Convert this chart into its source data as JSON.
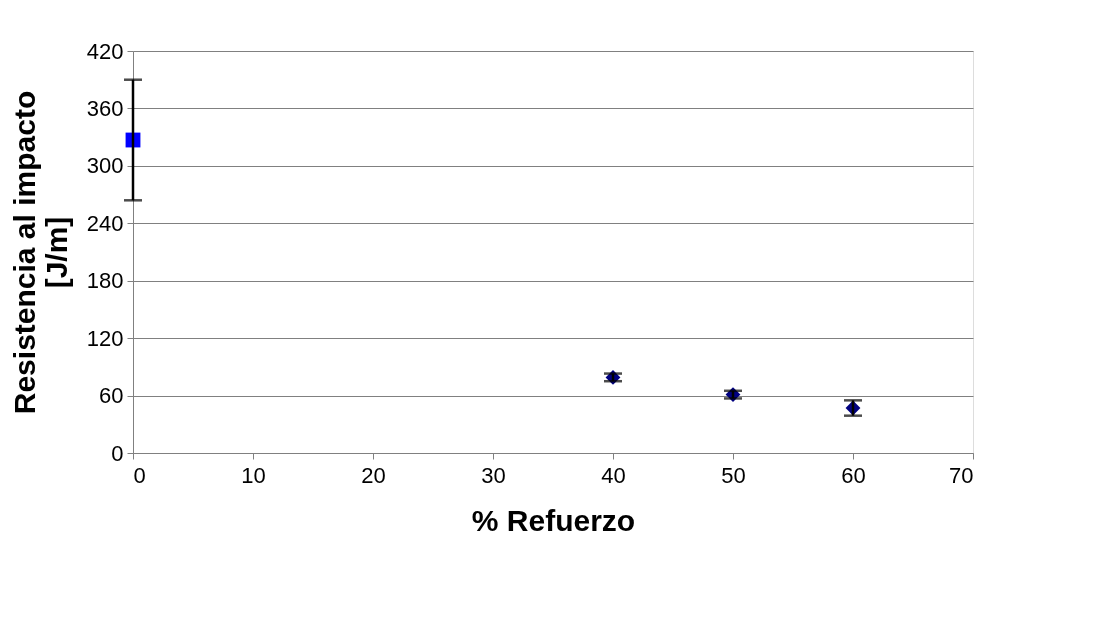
{
  "chart_data": {
    "type": "scatter",
    "xlabel": "% Refuerzo",
    "ylabel": "Resistencia al impacto [J/m]",
    "xlim": [
      0,
      70
    ],
    "xticks": [
      0,
      10,
      20,
      30,
      40,
      50,
      60,
      70
    ],
    "ylim": [
      0,
      420
    ],
    "yticks": [
      0,
      60,
      120,
      180,
      240,
      300,
      360,
      420
    ],
    "grid": "y",
    "series": [
      {
        "x": [
          0
        ],
        "values": [
          327
        ],
        "errors": [
          63
        ],
        "color": "#0000ff",
        "marker": "square"
      },
      {
        "x": [
          40,
          50,
          60
        ],
        "values": [
          79,
          61,
          47
        ],
        "errors": [
          4,
          4,
          8
        ],
        "color": "#000080",
        "marker": "diamond"
      }
    ]
  }
}
